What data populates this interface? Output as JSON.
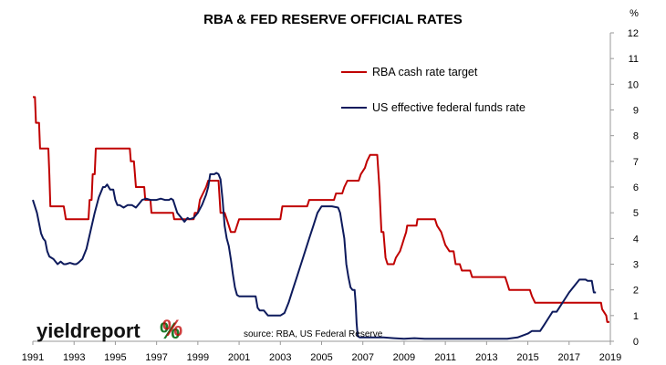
{
  "chart_data": {
    "type": "line",
    "title": "RBA & FED RESERVE OFFICIAL RATES",
    "y_unit": "%",
    "xlim": [
      1991.0,
      2019.0
    ],
    "ylim": [
      0,
      12
    ],
    "x_ticks": [
      "1991",
      "1993",
      "1995",
      "1997",
      "1999",
      "2001",
      "2003",
      "2005",
      "2007",
      "2009",
      "2011",
      "2013",
      "2015",
      "2017",
      "2019"
    ],
    "y_ticks": [
      "0",
      "1",
      "2",
      "3",
      "4",
      "5",
      "6",
      "7",
      "8",
      "9",
      "10",
      "11",
      "12"
    ],
    "grid": false,
    "legend_position": "top-center",
    "source_note": "source: RBA, US Federal Reserve",
    "series": [
      {
        "name": "RBA cash rate target",
        "color": "#c00000",
        "points": [
          [
            1991.0,
            9.5
          ],
          [
            1991.1,
            9.5
          ],
          [
            1991.15,
            8.5
          ],
          [
            1991.3,
            8.5
          ],
          [
            1991.35,
            7.5
          ],
          [
            1991.75,
            7.5
          ],
          [
            1991.8,
            6.5
          ],
          [
            1991.85,
            5.25
          ],
          [
            1992.5,
            5.25
          ],
          [
            1992.6,
            4.75
          ],
          [
            1993.7,
            4.75
          ],
          [
            1993.75,
            5.5
          ],
          [
            1993.85,
            5.5
          ],
          [
            1993.9,
            6.5
          ],
          [
            1994.0,
            6.5
          ],
          [
            1994.05,
            7.5
          ],
          [
            1995.7,
            7.5
          ],
          [
            1995.75,
            7.0
          ],
          [
            1995.9,
            7.0
          ],
          [
            1996.0,
            6.0
          ],
          [
            1996.4,
            6.0
          ],
          [
            1996.45,
            5.5
          ],
          [
            1996.7,
            5.5
          ],
          [
            1996.75,
            5.0
          ],
          [
            1997.8,
            5.0
          ],
          [
            1997.85,
            4.75
          ],
          [
            1998.8,
            4.75
          ],
          [
            1998.85,
            5.0
          ],
          [
            1999.0,
            5.0
          ],
          [
            1999.1,
            5.5
          ],
          [
            1999.25,
            5.75
          ],
          [
            1999.4,
            6.0
          ],
          [
            1999.5,
            6.25
          ],
          [
            2000.0,
            6.25
          ],
          [
            2000.1,
            5.0
          ],
          [
            2000.3,
            5.0
          ],
          [
            2000.4,
            4.75
          ],
          [
            2000.5,
            4.5
          ],
          [
            2000.6,
            4.25
          ],
          [
            2000.8,
            4.25
          ],
          [
            2001.0,
            4.75
          ],
          [
            2003.0,
            4.75
          ],
          [
            2003.1,
            5.25
          ],
          [
            2004.3,
            5.25
          ],
          [
            2004.4,
            5.5
          ],
          [
            2005.6,
            5.5
          ],
          [
            2005.7,
            5.75
          ],
          [
            2006.0,
            5.75
          ],
          [
            2006.1,
            6.0
          ],
          [
            2006.25,
            6.25
          ],
          [
            2006.8,
            6.25
          ],
          [
            2006.9,
            6.5
          ],
          [
            2007.1,
            6.75
          ],
          [
            2007.2,
            7.0
          ],
          [
            2007.35,
            7.25
          ],
          [
            2007.7,
            7.25
          ],
          [
            2007.8,
            6.0
          ],
          [
            2007.9,
            4.25
          ],
          [
            2008.0,
            4.25
          ],
          [
            2008.1,
            3.25
          ],
          [
            2008.2,
            3.0
          ],
          [
            2008.5,
            3.0
          ],
          [
            2008.6,
            3.25
          ],
          [
            2008.8,
            3.5
          ],
          [
            2008.9,
            3.75
          ],
          [
            2009.0,
            4.0
          ],
          [
            2009.1,
            4.25
          ],
          [
            2009.15,
            4.5
          ],
          [
            2009.6,
            4.5
          ],
          [
            2009.65,
            4.75
          ],
          [
            2010.5,
            4.75
          ],
          [
            2010.6,
            4.5
          ],
          [
            2010.8,
            4.25
          ],
          [
            2011.0,
            3.75
          ],
          [
            2011.2,
            3.5
          ],
          [
            2011.4,
            3.5
          ],
          [
            2011.5,
            3.0
          ],
          [
            2011.7,
            3.0
          ],
          [
            2011.8,
            2.75
          ],
          [
            2012.2,
            2.75
          ],
          [
            2012.3,
            2.5
          ],
          [
            2013.9,
            2.5
          ],
          [
            2014.0,
            2.25
          ],
          [
            2014.1,
            2.0
          ],
          [
            2015.1,
            2.0
          ],
          [
            2015.2,
            1.75
          ],
          [
            2015.35,
            1.5
          ],
          [
            2018.0,
            1.5
          ],
          [
            2018.05,
            1.5
          ],
          [
            2018.55,
            1.5
          ],
          [
            2018.6,
            1.25
          ],
          [
            2018.8,
            1.0
          ],
          [
            2018.85,
            0.75
          ],
          [
            2018.95,
            0.75
          ]
        ]
      },
      {
        "name": "US effective federal funds rate",
        "color": "#0d1a5c",
        "points": [
          [
            1991.0,
            5.5
          ],
          [
            1991.2,
            5.0
          ],
          [
            1991.4,
            4.2
          ],
          [
            1991.5,
            4.0
          ],
          [
            1991.6,
            3.9
          ],
          [
            1991.7,
            3.5
          ],
          [
            1991.8,
            3.3
          ],
          [
            1992.0,
            3.2
          ],
          [
            1992.2,
            3.0
          ],
          [
            1992.35,
            3.1
          ],
          [
            1992.5,
            3.0
          ],
          [
            1992.6,
            3.0
          ],
          [
            1992.8,
            3.05
          ],
          [
            1993.0,
            3.0
          ],
          [
            1993.1,
            3.0
          ],
          [
            1993.2,
            3.05
          ],
          [
            1993.4,
            3.2
          ],
          [
            1993.6,
            3.6
          ],
          [
            1993.8,
            4.3
          ],
          [
            1994.0,
            5.0
          ],
          [
            1994.2,
            5.6
          ],
          [
            1994.4,
            6.0
          ],
          [
            1994.5,
            6.0
          ],
          [
            1994.6,
            6.1
          ],
          [
            1994.75,
            5.9
          ],
          [
            1994.9,
            5.9
          ],
          [
            1995.0,
            5.5
          ],
          [
            1995.1,
            5.3
          ],
          [
            1995.2,
            5.3
          ],
          [
            1995.4,
            5.2
          ],
          [
            1995.6,
            5.3
          ],
          [
            1995.8,
            5.3
          ],
          [
            1996.0,
            5.2
          ],
          [
            1996.2,
            5.4
          ],
          [
            1996.3,
            5.5
          ],
          [
            1996.5,
            5.55
          ],
          [
            1996.7,
            5.5
          ],
          [
            1996.9,
            5.5
          ],
          [
            1997.0,
            5.5
          ],
          [
            1997.2,
            5.55
          ],
          [
            1997.4,
            5.5
          ],
          [
            1997.6,
            5.5
          ],
          [
            1997.7,
            5.55
          ],
          [
            1997.8,
            5.5
          ],
          [
            1998.0,
            5.0
          ],
          [
            1998.2,
            4.8
          ],
          [
            1998.35,
            4.65
          ],
          [
            1998.5,
            4.8
          ],
          [
            1998.6,
            4.75
          ],
          [
            1998.8,
            4.8
          ],
          [
            1999.0,
            5.0
          ],
          [
            1999.2,
            5.3
          ],
          [
            1999.4,
            5.7
          ],
          [
            1999.5,
            6.0
          ],
          [
            1999.6,
            6.5
          ],
          [
            1999.8,
            6.5
          ],
          [
            1999.9,
            6.55
          ],
          [
            2000.0,
            6.5
          ],
          [
            2000.1,
            6.3
          ],
          [
            2000.2,
            5.5
          ],
          [
            2000.3,
            4.5
          ],
          [
            2000.4,
            4.0
          ],
          [
            2000.5,
            3.7
          ],
          [
            2000.6,
            3.2
          ],
          [
            2000.7,
            2.6
          ],
          [
            2000.8,
            2.1
          ],
          [
            2000.9,
            1.8
          ],
          [
            2001.0,
            1.75
          ],
          [
            2001.2,
            1.75
          ],
          [
            2001.5,
            1.75
          ],
          [
            2001.8,
            1.75
          ],
          [
            2001.9,
            1.3
          ],
          [
            2002.0,
            1.2
          ],
          [
            2002.2,
            1.2
          ],
          [
            2002.4,
            1.0
          ],
          [
            2002.6,
            1.0
          ],
          [
            2002.8,
            1.0
          ],
          [
            2003.0,
            1.0
          ],
          [
            2003.2,
            1.1
          ],
          [
            2003.4,
            1.5
          ],
          [
            2003.6,
            2.0
          ],
          [
            2003.8,
            2.5
          ],
          [
            2004.0,
            3.0
          ],
          [
            2004.2,
            3.5
          ],
          [
            2004.4,
            4.0
          ],
          [
            2004.6,
            4.5
          ],
          [
            2004.8,
            5.0
          ],
          [
            2005.0,
            5.25
          ],
          [
            2005.2,
            5.25
          ],
          [
            2005.5,
            5.25
          ],
          [
            2005.8,
            5.2
          ],
          [
            2005.9,
            5.0
          ],
          [
            2006.0,
            4.5
          ],
          [
            2006.1,
            4.0
          ],
          [
            2006.2,
            3.0
          ],
          [
            2006.3,
            2.5
          ],
          [
            2006.4,
            2.1
          ],
          [
            2006.5,
            2.0
          ],
          [
            2006.6,
            2.0
          ],
          [
            2006.65,
            1.5
          ],
          [
            2006.7,
            0.7
          ],
          [
            2006.75,
            0.2
          ],
          [
            2006.85,
            0.15
          ],
          [
            2007.0,
            0.15
          ],
          [
            2007.5,
            0.15
          ],
          [
            2008.0,
            0.15
          ],
          [
            2008.5,
            0.12
          ],
          [
            2009.0,
            0.1
          ],
          [
            2009.5,
            0.12
          ],
          [
            2010.0,
            0.1
          ],
          [
            2010.5,
            0.1
          ],
          [
            2011.0,
            0.1
          ],
          [
            2011.5,
            0.1
          ],
          [
            2012.0,
            0.1
          ],
          [
            2012.5,
            0.1
          ],
          [
            2013.0,
            0.1
          ],
          [
            2013.5,
            0.1
          ],
          [
            2014.0,
            0.1
          ],
          [
            2014.5,
            0.15
          ],
          [
            2015.0,
            0.3
          ],
          [
            2015.2,
            0.4
          ],
          [
            2015.4,
            0.4
          ],
          [
            2015.6,
            0.4
          ],
          [
            2015.8,
            0.65
          ],
          [
            2016.0,
            0.9
          ],
          [
            2016.2,
            1.15
          ],
          [
            2016.4,
            1.15
          ],
          [
            2016.6,
            1.4
          ],
          [
            2016.8,
            1.65
          ],
          [
            2017.0,
            1.9
          ],
          [
            2017.2,
            2.1
          ],
          [
            2017.4,
            2.3
          ],
          [
            2017.5,
            2.4
          ],
          [
            2017.6,
            2.4
          ],
          [
            2017.7,
            2.4
          ],
          [
            2017.8,
            2.4
          ],
          [
            2017.9,
            2.35
          ],
          [
            2018.0,
            2.35
          ],
          [
            2018.1,
            2.35
          ],
          [
            2018.2,
            1.9
          ],
          [
            2018.3,
            1.9
          ]
        ]
      }
    ]
  },
  "logo": {
    "word_a": "yield",
    "word_b": "report",
    "percent": "%"
  }
}
